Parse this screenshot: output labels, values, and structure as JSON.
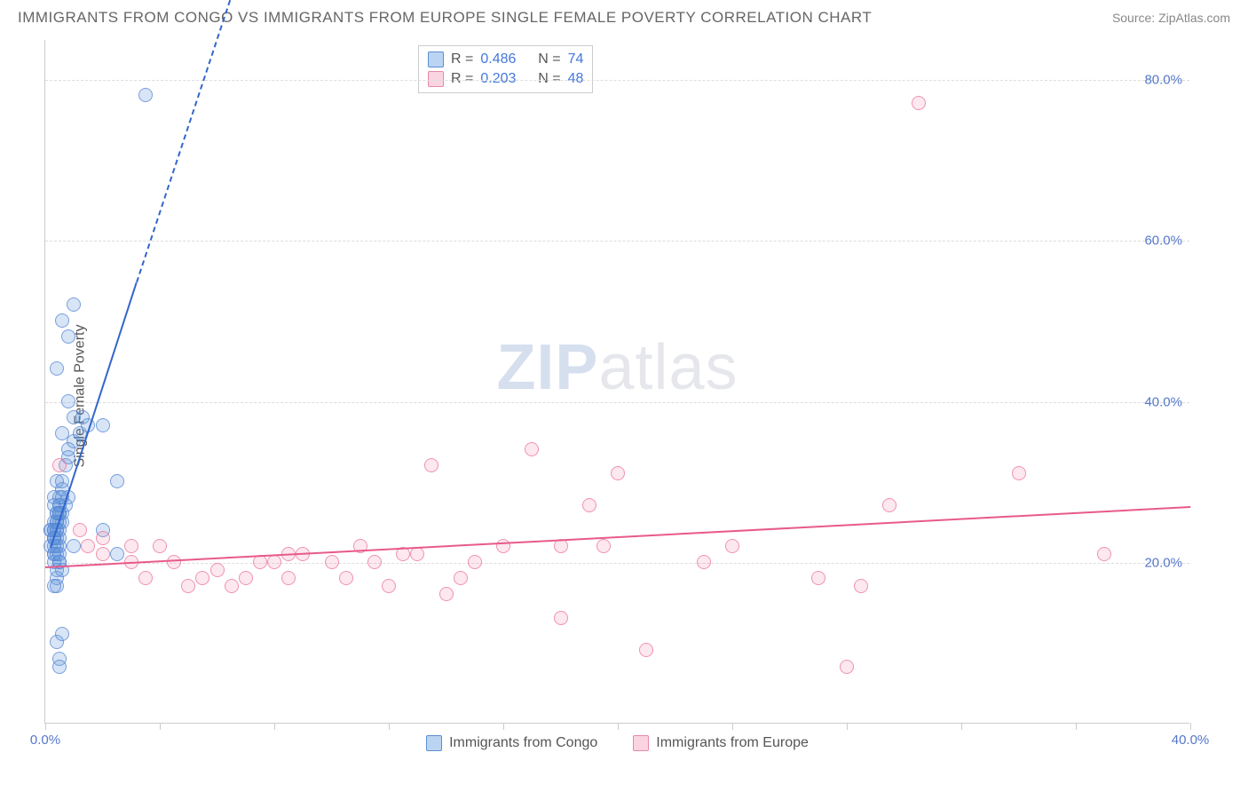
{
  "title": "IMMIGRANTS FROM CONGO VS IMMIGRANTS FROM EUROPE SINGLE FEMALE POVERTY CORRELATION CHART",
  "source_label": "Source:",
  "source_value": "ZipAtlas.com",
  "watermark_bold": "ZIP",
  "watermark_light": "atlas",
  "chart": {
    "type": "scatter",
    "ylabel": "Single Female Poverty",
    "xlim": [
      0,
      40
    ],
    "ylim": [
      0,
      85
    ],
    "ytick_values": [
      20,
      40,
      60,
      80
    ],
    "ytick_labels": [
      "20.0%",
      "40.0%",
      "60.0%",
      "80.0%"
    ],
    "xtick_values": [
      0,
      4,
      8,
      12,
      16,
      20,
      24,
      28,
      32,
      36,
      40
    ],
    "xtick_label_left": "0.0%",
    "xtick_label_right": "40.0%",
    "grid_color": "#dddddd",
    "axis_color": "#cccccc",
    "background_color": "#ffffff",
    "ytick_label_color": "#5577cc",
    "xtick_label_color": "#5577cc",
    "series": [
      {
        "name": "Immigrants from Congo",
        "fill_color": "rgba(100,150,220,0.25)",
        "stroke_color": "rgba(80,130,210,0.7)",
        "trend_color": "#3366cc",
        "r_value": "0.486",
        "n_value": "74",
        "trend": {
          "x1": 0.2,
          "y1": 22,
          "x2": 3.2,
          "y2": 55,
          "dash_x2": 8.5,
          "dash_y2": 112
        },
        "points": [
          [
            0.3,
            25
          ],
          [
            0.2,
            24
          ],
          [
            0.4,
            26
          ],
          [
            0.3,
            23
          ],
          [
            0.5,
            27
          ],
          [
            0.2,
            22
          ],
          [
            0.4,
            25
          ],
          [
            0.3,
            28
          ],
          [
            0.5,
            26
          ],
          [
            0.2,
            24
          ],
          [
            0.6,
            29
          ],
          [
            0.3,
            21
          ],
          [
            0.4,
            23
          ],
          [
            0.5,
            26
          ],
          [
            0.3,
            27
          ],
          [
            0.6,
            25
          ],
          [
            0.4,
            30
          ],
          [
            0.8,
            28
          ],
          [
            0.5,
            22
          ],
          [
            0.3,
            24
          ],
          [
            0.7,
            27
          ],
          [
            0.4,
            21
          ],
          [
            0.5,
            23
          ],
          [
            0.6,
            26
          ],
          [
            0.8,
            33
          ],
          [
            0.3,
            20
          ],
          [
            0.5,
            24
          ],
          [
            0.4,
            22
          ],
          [
            1.0,
            35
          ],
          [
            0.7,
            32
          ],
          [
            0.5,
            28
          ],
          [
            0.6,
            30
          ],
          [
            1.2,
            36
          ],
          [
            0.8,
            34
          ],
          [
            1.0,
            38
          ],
          [
            1.5,
            37
          ],
          [
            0.6,
            36
          ],
          [
            2.0,
            37
          ],
          [
            0.8,
            40
          ],
          [
            1.3,
            38
          ],
          [
            0.4,
            44
          ],
          [
            0.8,
            48
          ],
          [
            0.6,
            50
          ],
          [
            1.0,
            52
          ],
          [
            0.4,
            18
          ],
          [
            0.6,
            19
          ],
          [
            0.4,
            17
          ],
          [
            0.5,
            20
          ],
          [
            0.3,
            17
          ],
          [
            0.4,
            19
          ],
          [
            0.3,
            21
          ],
          [
            0.5,
            20
          ],
          [
            2.5,
            30
          ],
          [
            2.0,
            24
          ],
          [
            1.0,
            22
          ],
          [
            2.5,
            21
          ],
          [
            0.4,
            10
          ],
          [
            0.5,
            8
          ],
          [
            0.6,
            11
          ],
          [
            0.5,
            7
          ],
          [
            0.3,
            24
          ],
          [
            0.5,
            25
          ],
          [
            0.4,
            26
          ],
          [
            0.3,
            23
          ],
          [
            0.5,
            27
          ],
          [
            0.4,
            24
          ],
          [
            0.3,
            22
          ],
          [
            0.6,
            28
          ],
          [
            0.4,
            25
          ],
          [
            0.5,
            26
          ],
          [
            0.3,
            23
          ],
          [
            0.4,
            24
          ],
          [
            3.5,
            78
          ],
          [
            0.5,
            21
          ]
        ]
      },
      {
        "name": "Immigrants from Europe",
        "fill_color": "rgba(240,140,170,0.2)",
        "stroke_color": "rgba(235,110,150,0.7)",
        "trend_color": "#e85a8a",
        "r_value": "0.203",
        "n_value": "48",
        "trend": {
          "x1": 0,
          "y1": 19.5,
          "x2": 40,
          "y2": 27
        },
        "points": [
          [
            0.5,
            32
          ],
          [
            1.2,
            24
          ],
          [
            2.0,
            21
          ],
          [
            1.5,
            22
          ],
          [
            3.0,
            20
          ],
          [
            4.0,
            22
          ],
          [
            3.5,
            18
          ],
          [
            5.0,
            17
          ],
          [
            5.5,
            18
          ],
          [
            6.0,
            19
          ],
          [
            7.0,
            18
          ],
          [
            6.5,
            17
          ],
          [
            8.0,
            20
          ],
          [
            9.0,
            21
          ],
          [
            8.5,
            18
          ],
          [
            10.0,
            20
          ],
          [
            11.0,
            22
          ],
          [
            12.0,
            17
          ],
          [
            11.5,
            20
          ],
          [
            13.0,
            21
          ],
          [
            13.5,
            32
          ],
          [
            14.0,
            16
          ],
          [
            15.0,
            20
          ],
          [
            16.0,
            22
          ],
          [
            17.0,
            34
          ],
          [
            18.0,
            13
          ],
          [
            18.0,
            22
          ],
          [
            19.0,
            27
          ],
          [
            20.0,
            31
          ],
          [
            19.5,
            22
          ],
          [
            21.0,
            9
          ],
          [
            23.0,
            20
          ],
          [
            24.0,
            22
          ],
          [
            27.0,
            18
          ],
          [
            28.5,
            17
          ],
          [
            28.0,
            7
          ],
          [
            29.5,
            27
          ],
          [
            30.5,
            77
          ],
          [
            34.0,
            31
          ],
          [
            37.0,
            21
          ],
          [
            8.5,
            21
          ],
          [
            10.5,
            18
          ],
          [
            12.5,
            21
          ],
          [
            7.5,
            20
          ],
          [
            2.0,
            23
          ],
          [
            3.0,
            22
          ],
          [
            4.5,
            20
          ],
          [
            14.5,
            18
          ]
        ]
      }
    ]
  },
  "stats_box": {
    "r_label": "R =",
    "n_label": "N ="
  },
  "legend": {
    "series_a_label": "Immigrants from Congo",
    "series_b_label": "Immigrants from Europe"
  }
}
